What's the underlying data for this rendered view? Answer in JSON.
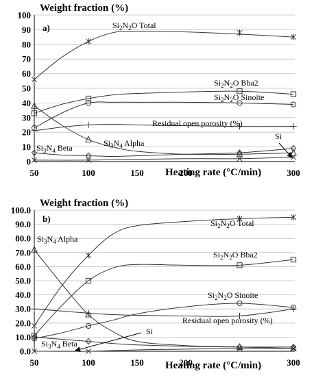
{
  "chart_data": [
    {
      "type": "line",
      "panel_label": "a)",
      "title": "Weight fraction (%)",
      "xlabel": "Heating rate (°C/min)",
      "ylabel": "",
      "x_ticks": [
        50,
        100,
        150,
        200,
        300
      ],
      "y_ticks": [
        0,
        10,
        20,
        30,
        40,
        50,
        60,
        70,
        80,
        90,
        100
      ],
      "y_tick_labels": [
        "0",
        "10",
        "20",
        "30",
        "40",
        "50",
        "60",
        "70",
        "80",
        "90",
        "100"
      ],
      "ylim": [
        0,
        100
      ],
      "grid": "horizontal",
      "series": [
        {
          "name": "Si2N2O Total",
          "marker": "star",
          "x": [
            50,
            100,
            250,
            300
          ],
          "y": [
            56,
            82,
            88,
            85
          ],
          "curve_x": [
            50,
            75,
            100,
            125,
            150,
            200,
            250,
            300
          ],
          "curve_y": [
            56,
            71,
            82,
            88,
            89,
            88.5,
            87,
            85
          ]
        },
        {
          "name": "Si2N2O Bba2",
          "marker": "square",
          "x": [
            50,
            100,
            250,
            300
          ],
          "y": [
            33,
            43,
            48,
            46
          ],
          "curve_x": [
            50,
            75,
            100,
            125,
            150,
            200,
            250,
            300
          ],
          "curve_y": [
            33,
            39,
            43,
            45.5,
            46.5,
            47.5,
            48,
            46
          ]
        },
        {
          "name": "Si2N2O Sinoite",
          "marker": "circle",
          "x": [
            50,
            100,
            250,
            300
          ],
          "y": [
            23,
            40,
            40,
            39
          ],
          "curve_x": [
            50,
            75,
            100,
            125,
            150,
            200,
            250,
            300
          ],
          "curve_y": [
            23,
            33,
            40,
            40.5,
            40.5,
            40.5,
            40,
            39
          ]
        },
        {
          "name": "Residual open porosity (%)",
          "marker": "plus",
          "x": [
            50,
            100,
            250,
            300
          ],
          "y": [
            21,
            25,
            24,
            24
          ],
          "curve_x": [
            50,
            75,
            100,
            125,
            150,
            200,
            250,
            300
          ],
          "curve_y": [
            21,
            23.5,
            25,
            25.5,
            25,
            24.5,
            24,
            24
          ]
        },
        {
          "name": "Si3N4 Alpha",
          "marker": "triangle",
          "x": [
            50,
            100,
            250,
            300
          ],
          "y": [
            38,
            15,
            5,
            6
          ],
          "curve_x": [
            50,
            75,
            100,
            125,
            150,
            200,
            250,
            300
          ],
          "curve_y": [
            38,
            25,
            15,
            10,
            7,
            5,
            5,
            6
          ]
        },
        {
          "name": "Si3N4 Beta",
          "marker": "diamond",
          "x": [
            50,
            100,
            250,
            300
          ],
          "y": [
            6,
            4,
            6,
            9
          ],
          "curve_x": [
            50,
            75,
            100,
            125,
            150,
            200,
            250,
            300
          ],
          "curve_y": [
            6,
            4.5,
            4,
            3.5,
            4,
            5,
            6,
            9
          ]
        },
        {
          "name": "Si",
          "marker": "x",
          "x": [
            50,
            100,
            250,
            300
          ],
          "y": [
            1,
            1,
            2,
            3
          ],
          "curve_x": [
            50,
            100,
            150,
            200,
            250,
            300
          ],
          "curve_y": [
            1,
            1,
            1.5,
            2,
            2,
            3
          ]
        }
      ],
      "annotations": [
        "Si2N2O Total",
        "Si2N2O Bba2",
        "Si2N2O Sinoite",
        "Residual open porosity (%)",
        "Si3N4 Alpha",
        "Si3N4 Beta",
        "Si"
      ]
    },
    {
      "type": "line",
      "panel_label": "b)",
      "title": "Weight fraction (%)",
      "xlabel": "Heating rate (°C/min)",
      "ylabel": "",
      "x_ticks": [
        50,
        100,
        150,
        200,
        300
      ],
      "y_ticks": [
        0,
        10,
        20,
        30,
        40,
        50,
        60,
        70,
        80,
        90,
        100
      ],
      "y_tick_labels": [
        "0.0",
        "10.0",
        "20.0",
        "30.0",
        "40.0",
        "50.0",
        "60.0",
        "70.0",
        "80.0",
        "90.0",
        "100.0"
      ],
      "ylim": [
        0,
        100
      ],
      "grid": "horizontal",
      "series": [
        {
          "name": "Si2N2O Total",
          "marker": "star",
          "x": [
            50,
            100,
            250,
            300
          ],
          "y": [
            18,
            68,
            94,
            95
          ],
          "curve_x": [
            50,
            75,
            100,
            125,
            150,
            200,
            250,
            300
          ],
          "curve_y": [
            18,
            46,
            68,
            83,
            89,
            92,
            94,
            95
          ]
        },
        {
          "name": "Si2N2O Bba2",
          "marker": "square",
          "x": [
            50,
            100,
            250,
            300
          ],
          "y": [
            11,
            50,
            61,
            65
          ],
          "curve_x": [
            50,
            75,
            100,
            125,
            150,
            200,
            250,
            300
          ],
          "curve_y": [
            11,
            32,
            50,
            59,
            61.5,
            61,
            61,
            65
          ]
        },
        {
          "name": "Si2N2O Sinoite",
          "marker": "circle",
          "x": [
            50,
            100,
            250,
            300
          ],
          "y": [
            9,
            18,
            34,
            31
          ],
          "curve_x": [
            50,
            75,
            100,
            125,
            150,
            200,
            250,
            300
          ],
          "curve_y": [
            9,
            13,
            18,
            22,
            26.5,
            31.5,
            34,
            31
          ]
        },
        {
          "name": "Residual open porosity (%)",
          "marker": "plus",
          "x": [
            50,
            100,
            250,
            300
          ],
          "y": [
            30,
            27,
            25,
            30
          ],
          "curve_x": [
            50,
            75,
            100,
            125,
            150,
            200,
            250,
            300
          ],
          "curve_y": [
            30,
            28.5,
            27,
            26,
            25.5,
            25,
            25,
            30
          ]
        },
        {
          "name": "Si3N4 Alpha",
          "marker": "triangle",
          "x": [
            50,
            100,
            250,
            300
          ],
          "y": [
            72,
            26,
            3,
            2
          ],
          "curve_x": [
            50,
            75,
            100,
            125,
            150,
            200,
            250,
            300
          ],
          "curve_y": [
            72,
            48,
            26,
            14,
            7,
            4,
            3,
            2
          ]
        },
        {
          "name": "Si3N4 Beta",
          "marker": "diamond",
          "x": [
            50,
            100,
            250,
            300
          ],
          "y": [
            10,
            7,
            3,
            3
          ],
          "curve_x": [
            50,
            75,
            100,
            125,
            150,
            200,
            250,
            300
          ],
          "curve_y": [
            10,
            8.5,
            7,
            5.5,
            4.5,
            3.5,
            3,
            3
          ]
        },
        {
          "name": "Si",
          "marker": "x",
          "x": [
            50,
            100,
            250,
            300
          ],
          "y": [
            0,
            0,
            2,
            2
          ],
          "curve_x": [
            50,
            100,
            150,
            200,
            250,
            300
          ],
          "curve_y": [
            0,
            0,
            1,
            1.5,
            2,
            2
          ]
        }
      ],
      "annotations": [
        "Si2N2O Total",
        "Si2N2O Bba2",
        "Si2N2O Sinoite",
        "Residual open porosity (%)",
        "Si3N4 Alpha",
        "Si3N4 Beta",
        "Si"
      ]
    }
  ]
}
